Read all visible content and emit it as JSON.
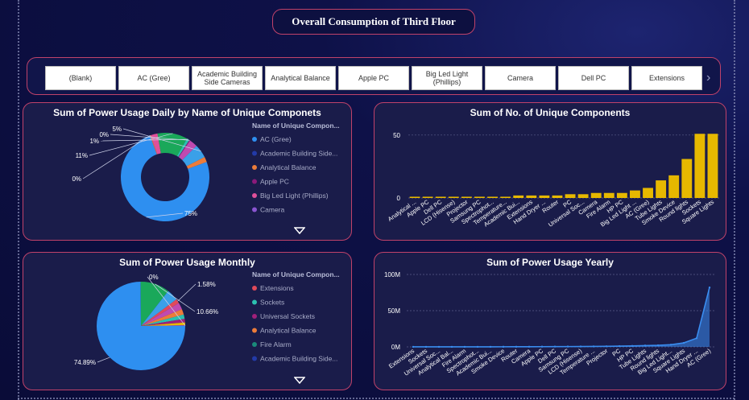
{
  "header": {
    "title": "Overall Consumption of Third Floor"
  },
  "slicer": {
    "items": [
      "(Blank)",
      "AC (Gree)",
      "Academic Building Side Cameras",
      "Analytical Balance",
      "Apple PC",
      "Big Led Light (Phillips)",
      "Camera",
      "Dell PC",
      "Extensions"
    ],
    "arrow_icon": "chevron-right-icon"
  },
  "chart_data": [
    {
      "type": "donut",
      "title": "Sum of Power Usage Daily by Name of Unique Componets",
      "legend_title": "Name of Unique Compon...",
      "legend_items": [
        {
          "label": "AC (Gree)",
          "color": "#2e8ff0"
        },
        {
          "label": "Academic Building Side...",
          "color": "#233aa8"
        },
        {
          "label": "Analytical Balance",
          "color": "#ec7c3a"
        },
        {
          "label": "Apple PC",
          "color": "#8a1a7a"
        },
        {
          "label": "Big Led Light (Phillips)",
          "color": "#e0509a"
        },
        {
          "label": "Camera",
          "color": "#8a55d0"
        }
      ],
      "slices": [
        {
          "value": 75,
          "label": "75%",
          "color": "#2e8ff0"
        },
        {
          "value": 0.3,
          "label": "0%",
          "color": "#ec7c3a"
        },
        {
          "value": 2.5,
          "label": "",
          "color": "#e0509a"
        },
        {
          "value": 11,
          "label": "11%",
          "color": "#1aa85a"
        },
        {
          "value": 1,
          "label": "1%",
          "color": "#2cc0b0"
        },
        {
          "value": 0.3,
          "label": "0%",
          "color": "#8a1a7a"
        },
        {
          "value": 3,
          "label": "",
          "color": "#c04ab0"
        },
        {
          "value": 5,
          "label": "5%",
          "color": "#3aa0e8"
        },
        {
          "value": 1.9,
          "label": "",
          "color": "#ec7c3a"
        }
      ]
    },
    {
      "type": "bar",
      "title": "Sum of No. of Unique Components",
      "categories": [
        "Analytical ...",
        "Apple PC",
        "Dell PC",
        "LCD (Hisense)",
        "Projector",
        "Samsung PC",
        "Spectrophot...",
        "Temperature...",
        "Academic Bui...",
        "Extensions",
        "Hand Dryer ...",
        "Router",
        "PC",
        "Universal Soc...",
        "Camera",
        "Fire Alarm",
        "HP PC",
        "Big Led Light ...",
        "AC (Gree)",
        "Tube Lights",
        "Smoke Device",
        "Round lights",
        "Sockets",
        "Square Lights"
      ],
      "values": [
        1,
        1,
        1,
        1,
        1,
        1,
        1,
        1,
        2,
        2,
        2,
        2,
        3,
        3,
        4,
        4,
        4,
        6,
        8,
        14,
        18,
        31,
        51,
        51
      ],
      "yticks": [
        "50",
        "0"
      ],
      "ylim": [
        0,
        55
      ],
      "color": "#e6b800"
    },
    {
      "type": "pie",
      "title": "Sum of Power Usage Monthly",
      "legend_title": "Name of Unique Compon...",
      "legend_items": [
        {
          "label": "Extensions",
          "color": "#e04a5a"
        },
        {
          "label": "Sockets",
          "color": "#2cc0b0"
        },
        {
          "label": "Universal Sockets",
          "color": "#a0207a"
        },
        {
          "label": "Analytical Balance",
          "color": "#ec7c3a"
        },
        {
          "label": "Fire Alarm",
          "color": "#1a8a7a"
        },
        {
          "label": "Academic Building Side...",
          "color": "#233aa8"
        }
      ],
      "slices": [
        {
          "value": 74.89,
          "label": "74.89%",
          "color": "#2e8ff0"
        },
        {
          "value": 10.66,
          "label": "10.66%",
          "color": "#1aa85a"
        },
        {
          "value": 4.2,
          "label": "",
          "color": "#3aa0e8"
        },
        {
          "value": 1.58,
          "label": "1.58%",
          "color": "#e04a5a"
        },
        {
          "value": 2.5,
          "label": "",
          "color": "#c04ab0"
        },
        {
          "value": 2.0,
          "label": "",
          "color": "#ec7c3a"
        },
        {
          "value": 1.6,
          "label": "",
          "color": "#2cc0b0"
        },
        {
          "value": 1.3,
          "label": "",
          "color": "#a0207a"
        },
        {
          "value": 1.0,
          "label": "",
          "color": "#e6b800"
        },
        {
          "value": 0.27,
          "label": "0%",
          "color": "#8a55d0"
        }
      ]
    },
    {
      "type": "area",
      "title": "Sum of Power Usage Yearly",
      "categories": [
        "Extensions",
        "Sockets",
        "Universal Soc...",
        "Analytical Bal...",
        "Fire Alarm",
        "Spectrophot...",
        "Academic Bui...",
        "Smoke Device",
        "Router",
        "Camera",
        "Apple PC",
        "Dell PC",
        "Samsung PC",
        "LCD (Hisense)",
        "Temperature ...",
        "Projector",
        "PC",
        "HP PC",
        "Tube Lights",
        "Round lights",
        "Big Led Light...",
        "Square Lights",
        "Hand Dryer ...",
        "AC (Gree)"
      ],
      "values": [
        0.02,
        0.03,
        0.05,
        0.06,
        0.08,
        0.1,
        0.12,
        0.15,
        0.18,
        0.22,
        0.28,
        0.35,
        0.42,
        0.5,
        0.6,
        0.8,
        1.0,
        1.3,
        1.8,
        2.2,
        3.0,
        5.5,
        12,
        82
      ],
      "yticks": [
        "100M",
        "50M",
        "0M"
      ],
      "ylim": [
        0,
        100
      ],
      "color": "#3a8df0"
    }
  ]
}
